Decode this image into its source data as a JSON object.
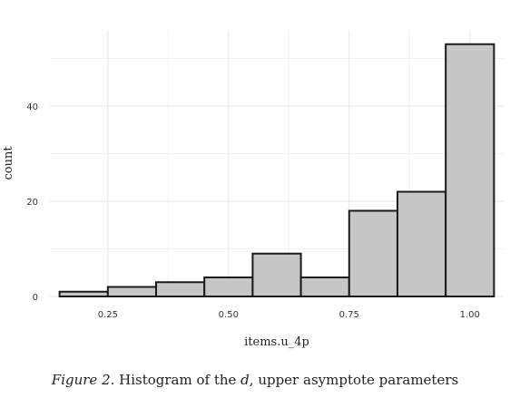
{
  "chart_data": {
    "type": "bar",
    "histogram": true,
    "xlabel": "items.u_4p",
    "ylabel": "count",
    "xlim": [
      0.13,
      1.07
    ],
    "ylim": [
      0,
      56
    ],
    "x_major_ticks": [
      0.25,
      0.5,
      0.75,
      1.0
    ],
    "x_tick_labels": [
      "0.25",
      "0.50",
      "0.75",
      "1.00"
    ],
    "x_minor_ticks": [
      0.375,
      0.625,
      0.875
    ],
    "y_major_ticks": [
      0,
      20,
      40
    ],
    "y_tick_labels": [
      "0",
      "20",
      "40"
    ],
    "y_minor_ticks": [
      10,
      30,
      50
    ],
    "grid": true,
    "bin_width": 0.1,
    "bins": [
      {
        "x0": 0.15,
        "x1": 0.25,
        "count": 1
      },
      {
        "x0": 0.25,
        "x1": 0.35,
        "count": 2
      },
      {
        "x0": 0.35,
        "x1": 0.45,
        "count": 3
      },
      {
        "x0": 0.45,
        "x1": 0.55,
        "count": 4
      },
      {
        "x0": 0.55,
        "x1": 0.65,
        "count": 9
      },
      {
        "x0": 0.65,
        "x1": 0.75,
        "count": 4
      },
      {
        "x0": 0.75,
        "x1": 0.85,
        "count": 18
      },
      {
        "x0": 0.85,
        "x1": 0.95,
        "count": 22
      },
      {
        "x0": 0.95,
        "x1": 1.05,
        "count": 53
      }
    ],
    "bar_fill": "#c6c6c6",
    "bar_stroke": "#1a1a1a"
  },
  "caption": {
    "figure_label": "Figure 2",
    "text_before": ". Histogram of the ",
    "symbol": "d",
    "text_after": ", upper asymptote parameters"
  }
}
